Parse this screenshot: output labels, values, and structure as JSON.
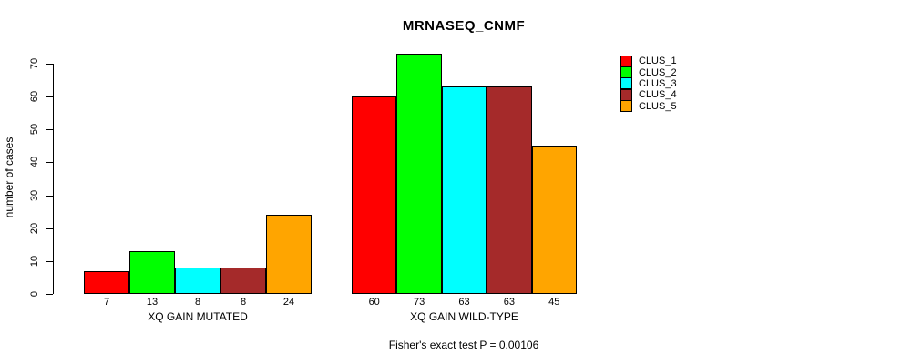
{
  "title": "MRNASEQ_CNMF",
  "footer": "Fisher's exact test P = 0.00106",
  "chart_data": {
    "type": "bar",
    "title": "MRNASEQ_CNMF",
    "xlabel": "",
    "ylabel": "number of cases",
    "ylim": [
      0,
      70
    ],
    "yticks": [
      0,
      10,
      20,
      30,
      40,
      50,
      60,
      70
    ],
    "grid": false,
    "legend_position": "top-right",
    "bar_border_color": "#000000",
    "groups": [
      {
        "label": "XQ GAIN MUTATED",
        "values": [
          7,
          13,
          8,
          8,
          24
        ]
      },
      {
        "label": "XQ GAIN WILD-TYPE",
        "values": [
          60,
          73,
          63,
          63,
          45
        ]
      }
    ],
    "series": [
      {
        "name": "CLUS_1",
        "color": "#FF0000"
      },
      {
        "name": "CLUS_2",
        "color": "#00FF00"
      },
      {
        "name": "CLUS_3",
        "color": "#00FFFF"
      },
      {
        "name": "CLUS_4",
        "color": "#A52A2A"
      },
      {
        "name": "CLUS_5",
        "color": "#FFA500"
      }
    ],
    "value_labels_under_bars": [
      [
        7,
        13,
        8,
        8,
        24
      ],
      [
        60,
        73,
        63,
        63,
        45
      ]
    ],
    "annotation": "Fisher's exact test P = 0.00106"
  }
}
